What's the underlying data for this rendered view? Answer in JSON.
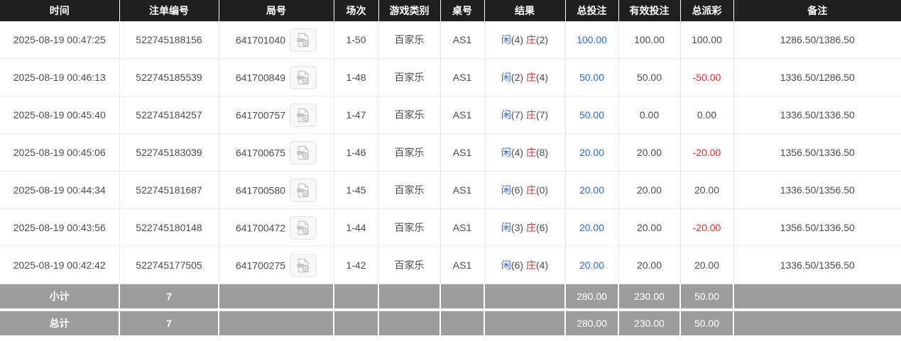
{
  "table": {
    "columns": [
      "时间",
      "注单编号",
      "局号",
      "场次",
      "游戏类别",
      "桌号",
      "结果",
      "总投注",
      "有效投注",
      "总派彩",
      "备注"
    ],
    "rows": [
      {
        "time": "2025-08-19 00:47:25",
        "bet_id": "522745188156",
        "round_id": "641701040",
        "session": "1-50",
        "game_type": "百家乐",
        "table_no": "AS1",
        "result": {
          "player_label": "闲",
          "player_value": "(4)",
          "banker_label": "庄",
          "banker_value": "(2)"
        },
        "total_bet": "100.00",
        "valid_bet": "100.00",
        "payout": "100.00",
        "remark": "1286.50/1386.50"
      },
      {
        "time": "2025-08-19 00:46:13",
        "bet_id": "522745185539",
        "round_id": "641700849",
        "session": "1-48",
        "game_type": "百家乐",
        "table_no": "AS1",
        "result": {
          "player_label": "闲",
          "player_value": "(2)",
          "banker_label": "庄",
          "banker_value": "(4)"
        },
        "total_bet": "50.00",
        "valid_bet": "50.00",
        "payout": "-50.00",
        "remark": "1336.50/1286.50"
      },
      {
        "time": "2025-08-19 00:45:40",
        "bet_id": "522745184257",
        "round_id": "641700757",
        "session": "1-47",
        "game_type": "百家乐",
        "table_no": "AS1",
        "result": {
          "player_label": "闲",
          "player_value": "(7)",
          "banker_label": "庄",
          "banker_value": "(7)"
        },
        "total_bet": "50.00",
        "valid_bet": "0.00",
        "payout": "0.00",
        "remark": "1336.50/1336.50"
      },
      {
        "time": "2025-08-19 00:45:06",
        "bet_id": "522745183039",
        "round_id": "641700675",
        "session": "1-46",
        "game_type": "百家乐",
        "table_no": "AS1",
        "result": {
          "player_label": "闲",
          "player_value": "(4)",
          "banker_label": "庄",
          "banker_value": "(8)"
        },
        "total_bet": "20.00",
        "valid_bet": "20.00",
        "payout": "-20.00",
        "remark": "1356.50/1336.50"
      },
      {
        "time": "2025-08-19 00:44:34",
        "bet_id": "522745181687",
        "round_id": "641700580",
        "session": "1-45",
        "game_type": "百家乐",
        "table_no": "AS1",
        "result": {
          "player_label": "闲",
          "player_value": "(6)",
          "banker_label": "庄",
          "banker_value": "(0)"
        },
        "total_bet": "20.00",
        "valid_bet": "20.00",
        "payout": "20.00",
        "remark": "1336.50/1356.50"
      },
      {
        "time": "2025-08-19 00:43:56",
        "bet_id": "522745180148",
        "round_id": "641700472",
        "session": "1-44",
        "game_type": "百家乐",
        "table_no": "AS1",
        "result": {
          "player_label": "闲",
          "player_value": "(3)",
          "banker_label": "庄",
          "banker_value": "(6)"
        },
        "total_bet": "20.00",
        "valid_bet": "20.00",
        "payout": "-20.00",
        "remark": "1356.50/1336.50"
      },
      {
        "time": "2025-08-19 00:42:42",
        "bet_id": "522745177505",
        "round_id": "641700275",
        "session": "1-42",
        "game_type": "百家乐",
        "table_no": "AS1",
        "result": {
          "player_label": "闲",
          "player_value": "(6)",
          "banker_label": "庄",
          "banker_value": "(4)"
        },
        "total_bet": "20.00",
        "valid_bet": "20.00",
        "payout": "20.00",
        "remark": "1336.50/1356.50"
      }
    ],
    "footer": {
      "subtotal": {
        "label": "小计",
        "count": "7",
        "total_bet": "280.00",
        "valid_bet": "230.00",
        "payout": "50.00"
      },
      "total": {
        "label": "总计",
        "count": "7",
        "total_bet": "280.00",
        "valid_bet": "230.00",
        "payout": "50.00"
      }
    }
  },
  "icons": {
    "round_video": "video-file-icon"
  },
  "colors": {
    "header_bg": "#1f1f1f",
    "player_blue": "#2c6be0",
    "banker_red": "#e62e2e",
    "negative_red": "#e62e2e",
    "footer_bg": "#9c9c9c",
    "row_border": "#e9e9e9"
  }
}
